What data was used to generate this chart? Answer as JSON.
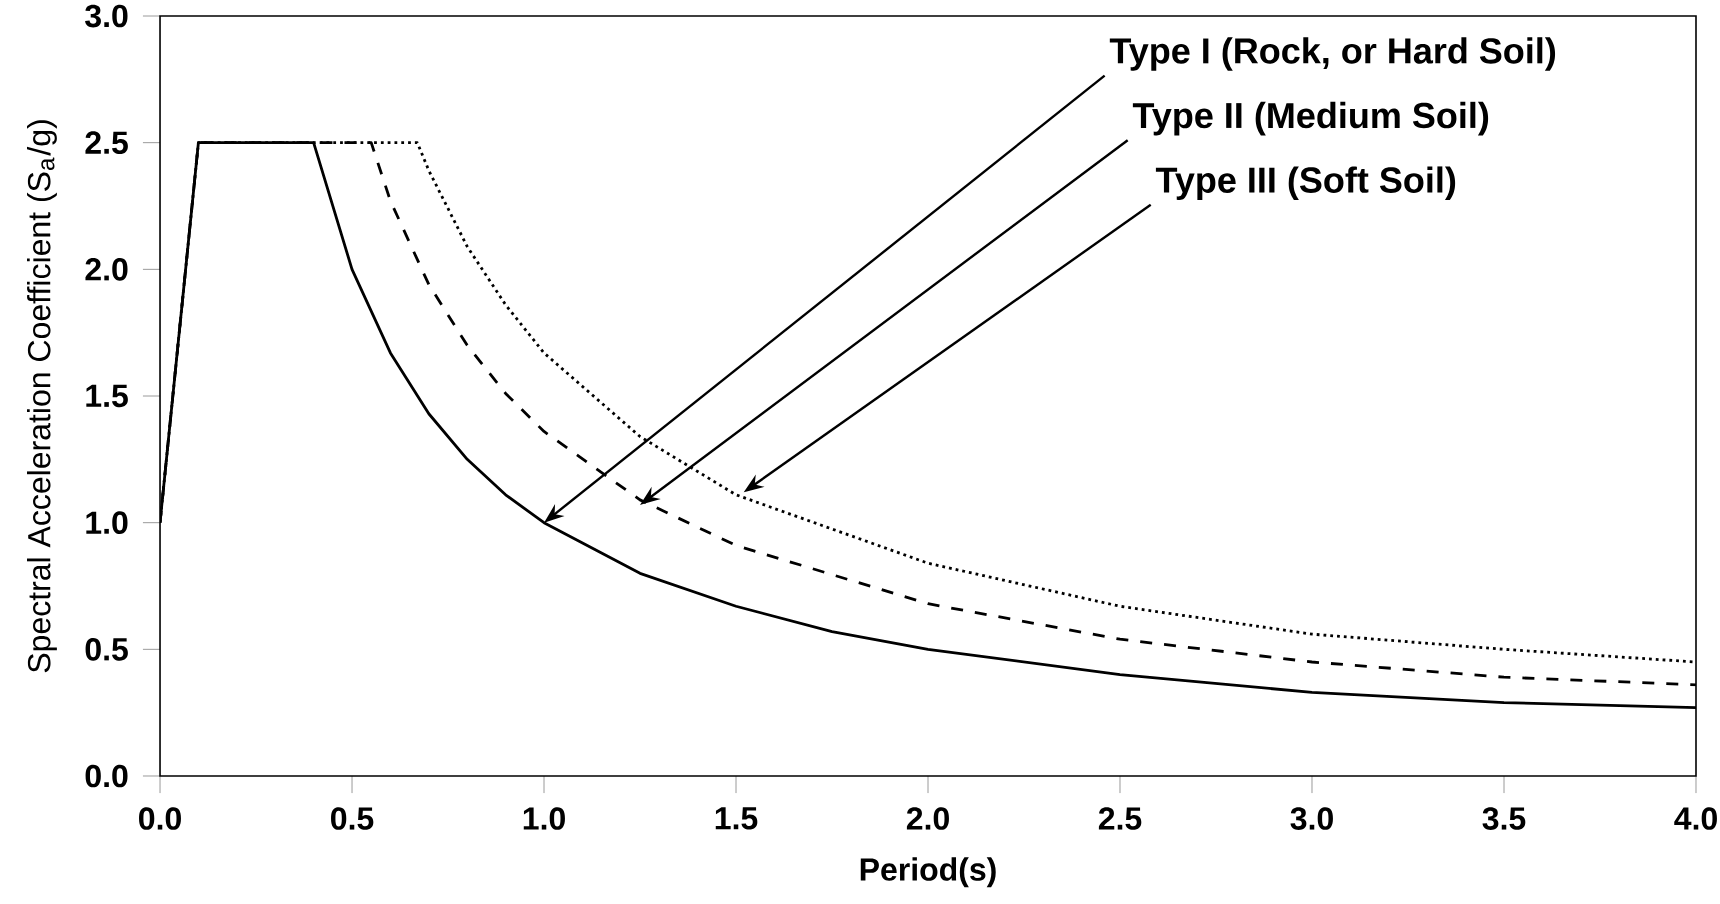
{
  "chart_data": {
    "type": "line",
    "xlabel": "Period(s)",
    "ylabel": "Spectral Acceleration Coefficient (S$_{a}$/g)",
    "xlim": [
      0,
      4
    ],
    "ylim": [
      0,
      3
    ],
    "xticks": [
      {
        "value": 0,
        "label": "0.0"
      },
      {
        "value": 0.5,
        "label": "0.5"
      },
      {
        "value": 1,
        "label": "1.0"
      },
      {
        "value": 1.5,
        "label": "1.5"
      },
      {
        "value": 2,
        "label": "2.0"
      },
      {
        "value": 2.5,
        "label": "2.5"
      },
      {
        "value": 3,
        "label": "3.0"
      },
      {
        "value": 3.5,
        "label": "3.5"
      },
      {
        "value": 4,
        "label": "4.0"
      }
    ],
    "yticks": [
      {
        "value": 0,
        "label": "0.0"
      },
      {
        "value": 0.5,
        "label": "0.5"
      },
      {
        "value": 1,
        "label": "1.0"
      },
      {
        "value": 1.5,
        "label": "1.5"
      },
      {
        "value": 2,
        "label": "2.0"
      },
      {
        "value": 2.5,
        "label": "2.5"
      },
      {
        "value": 3,
        "label": "3.0"
      }
    ],
    "marker": "none",
    "series": [
      {
        "color": "#000000",
        "line_style": "solid",
        "x": [
          0,
          0.1,
          0.4,
          0.5,
          0.6,
          0.7,
          0.8,
          0.9,
          1.0,
          1.25,
          1.5,
          1.75,
          2,
          2.5,
          3,
          3.5,
          4
        ],
        "values": [
          1.0,
          2.5,
          2.5,
          2.0,
          1.67,
          1.43,
          1.25,
          1.11,
          1.0,
          0.8,
          0.67,
          0.57,
          0.5,
          0.4,
          0.33,
          0.29,
          0.27
        ]
      },
      {
        "color": "#000000",
        "line_style": "dashed",
        "x": [
          0,
          0.1,
          0.55,
          0.6,
          0.7,
          0.8,
          0.9,
          1.0,
          1.25,
          1.5,
          2,
          2.5,
          3,
          3.5,
          4
        ],
        "values": [
          1.0,
          2.5,
          2.5,
          2.27,
          1.94,
          1.7,
          1.51,
          1.36,
          1.09,
          0.91,
          0.68,
          0.54,
          0.45,
          0.39,
          0.36
        ]
      },
      {
        "color": "#000000",
        "line_style": "dotted",
        "x": [
          0,
          0.1,
          0.67,
          0.7,
          0.8,
          0.9,
          1.0,
          1.25,
          1.5,
          2,
          2.5,
          3,
          3.5,
          4
        ],
        "values": [
          1.0,
          2.5,
          2.5,
          2.39,
          2.09,
          1.86,
          1.67,
          1.34,
          1.11,
          0.84,
          0.67,
          0.56,
          0.5,
          0.45
        ]
      }
    ],
    "annotations": [
      {
        "text": "Type I  (Rock, or Hard Soil)",
        "x": 1.0,
        "y": 1.0
      },
      {
        "text": "Type II (Medium Soil)",
        "x": 1.25,
        "y": 1.07
      },
      {
        "text": "Type III (Soft Soil)",
        "x": 1.52,
        "y": 1.12
      }
    ]
  }
}
